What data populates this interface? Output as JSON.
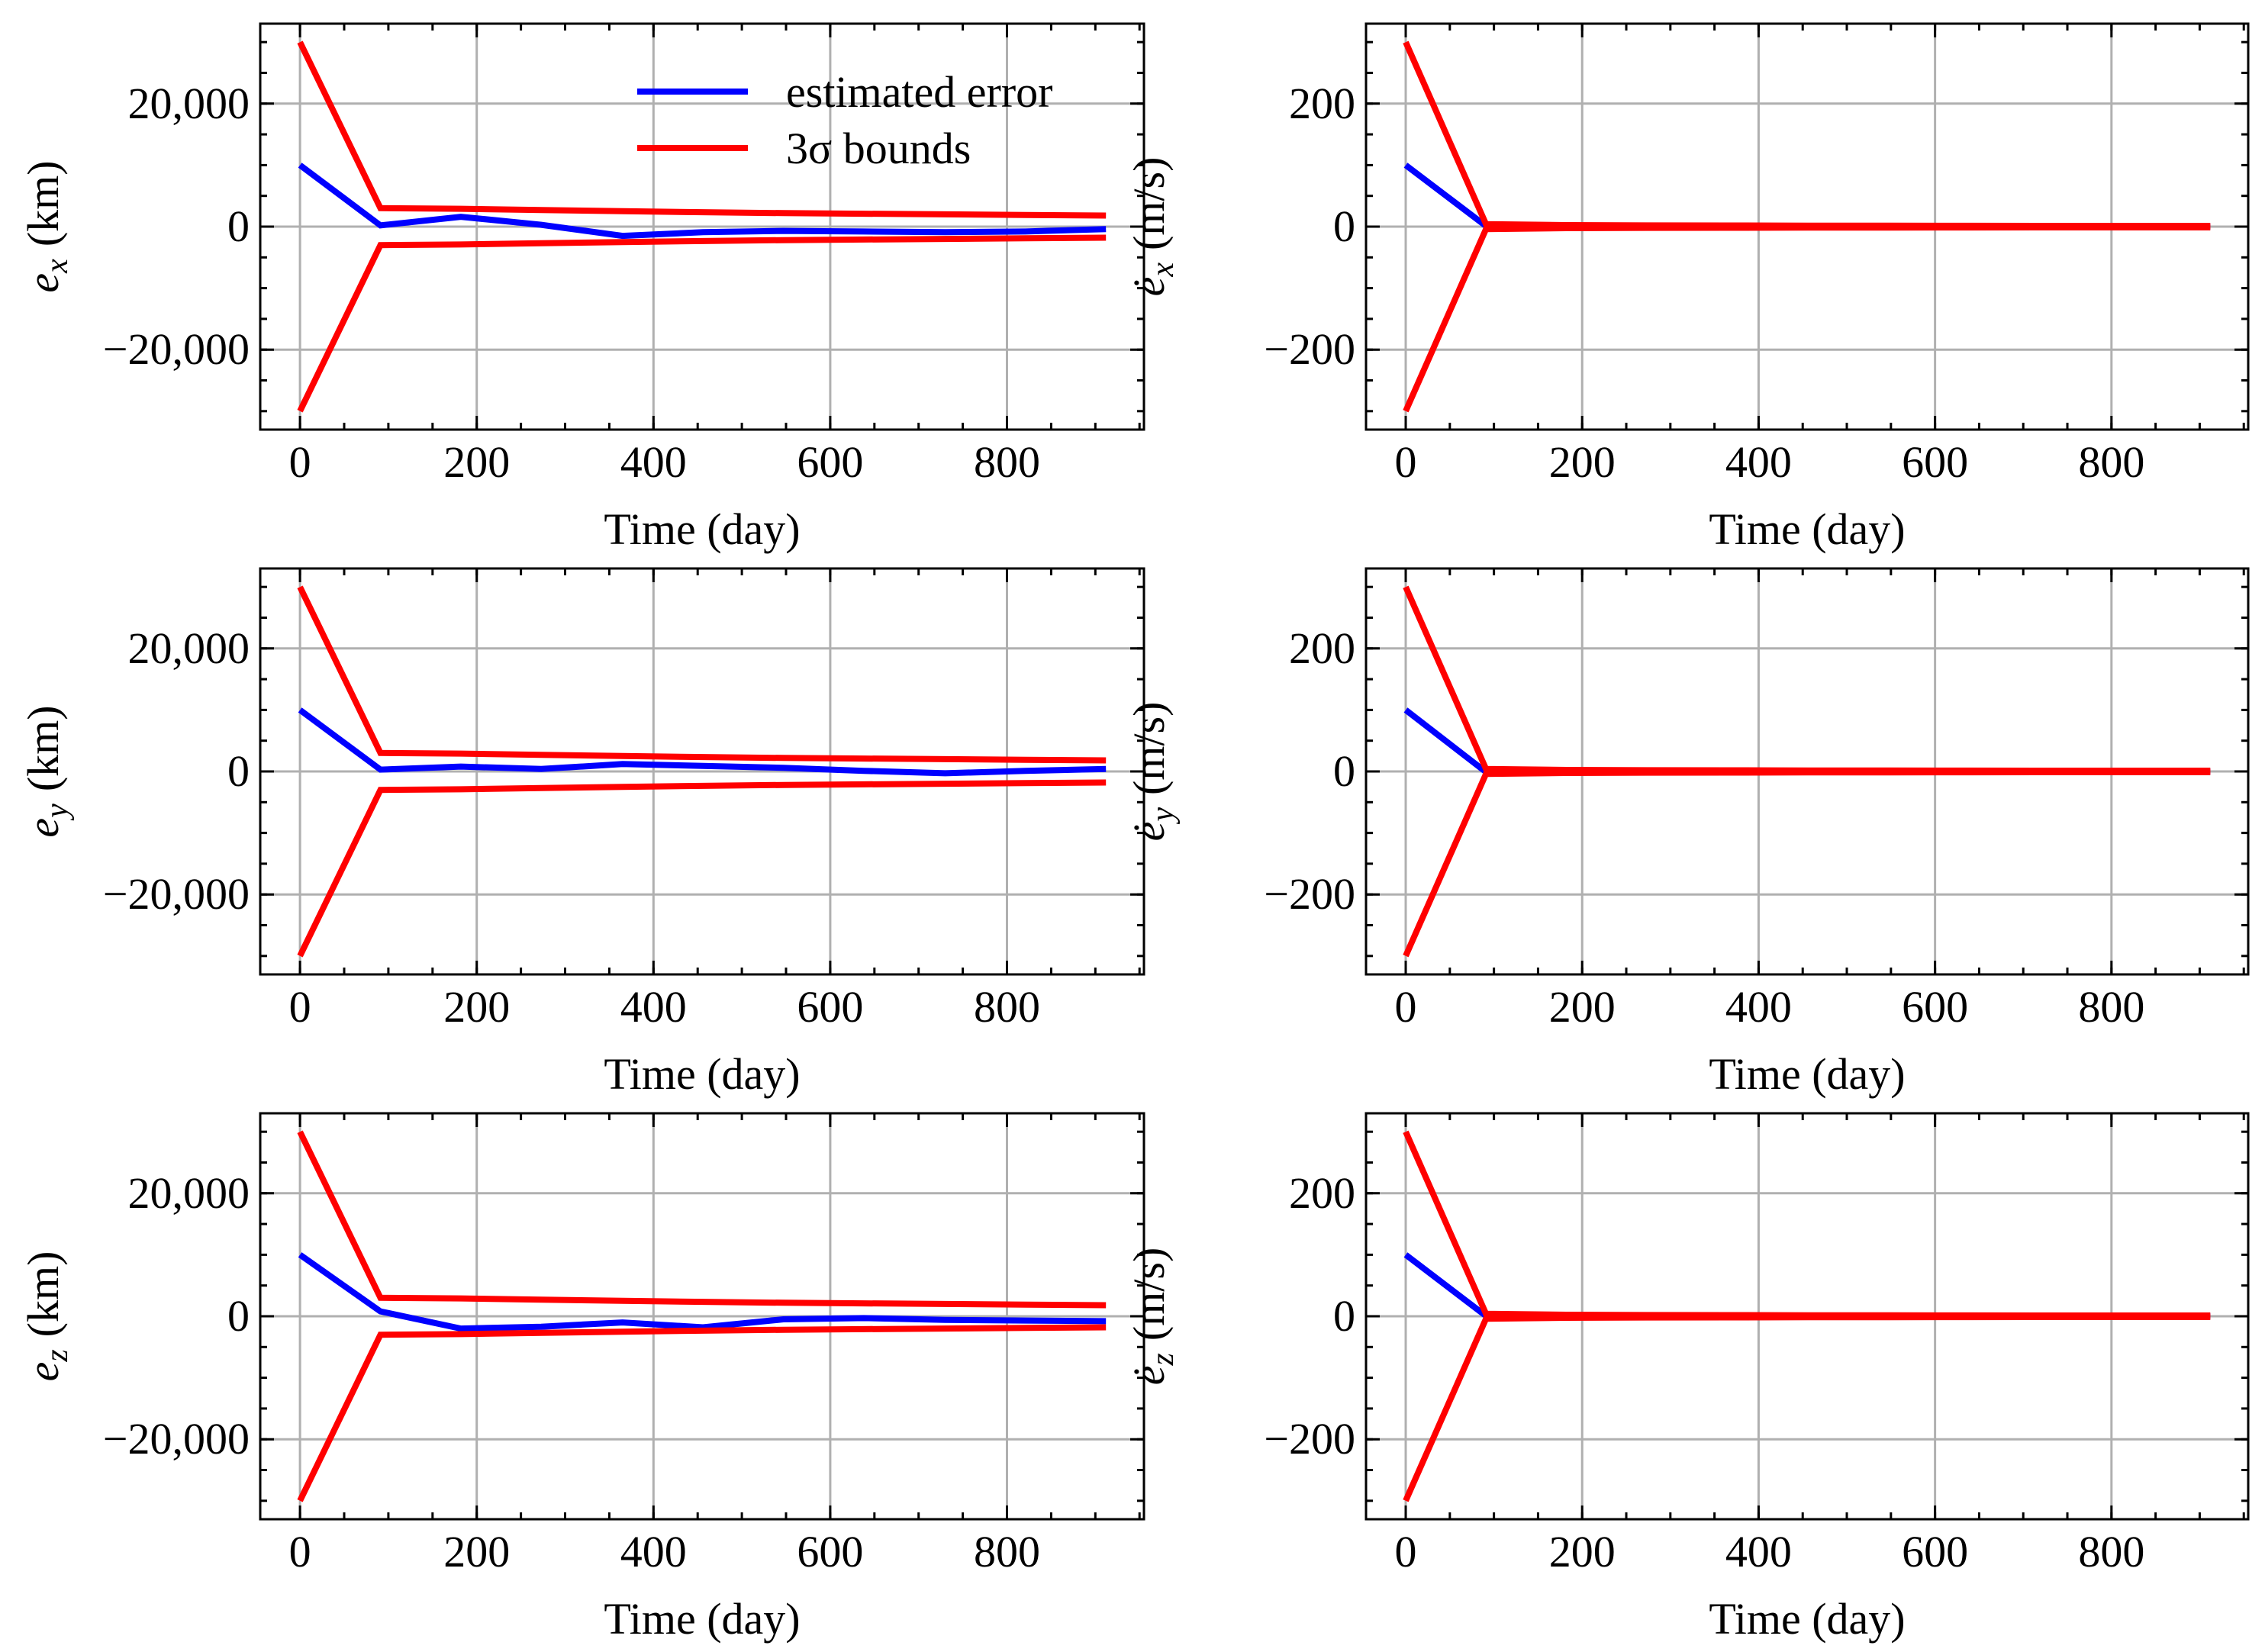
{
  "colors": {
    "estimated": "#0000ff",
    "bounds": "#ff0000",
    "grid": "#b0b0b0"
  },
  "legend": {
    "placement": "top-right of first panel",
    "entries": [
      {
        "label": "estimated error",
        "color": "#0000ff"
      },
      {
        "label": "3σ bounds",
        "color": "#ff0000"
      }
    ]
  },
  "chart_data": [
    {
      "type": "line",
      "ylabel": "e_x (km)",
      "ylabel_var": "e",
      "ylabel_sub": "x",
      "ylabel_unit": "(km)",
      "ylabel_dot": false,
      "xlabel": "Time (day)",
      "xlim": [
        -45,
        955
      ],
      "ylim": [
        -33000,
        33000
      ],
      "xticks": [
        0,
        200,
        400,
        600,
        800
      ],
      "xtick_labels": [
        "0",
        "200",
        "400",
        "600",
        "800"
      ],
      "yticks": [
        -20000,
        0,
        20000
      ],
      "ytick_labels": [
        "−20,000",
        "0",
        "20,000"
      ],
      "x": [
        0,
        91,
        182,
        273,
        365,
        456,
        547,
        638,
        730,
        821,
        912
      ],
      "series": [
        {
          "name": "estimated error",
          "values": [
            10000,
            200,
            1600,
            300,
            -1500,
            -900,
            -700,
            -800,
            -900,
            -800,
            -400
          ]
        },
        {
          "name": "3σ upper",
          "values": [
            30000,
            3000,
            2900,
            2700,
            2500,
            2350,
            2200,
            2100,
            2000,
            1900,
            1800
          ]
        },
        {
          "name": "3σ lower",
          "values": [
            -30000,
            -3000,
            -2900,
            -2700,
            -2500,
            -2350,
            -2200,
            -2100,
            -2000,
            -1900,
            -1800
          ]
        }
      ]
    },
    {
      "type": "line",
      "ylabel": "ė_x (m/s)",
      "ylabel_var": "e",
      "ylabel_sub": "x",
      "ylabel_unit": "(m/s)",
      "ylabel_dot": true,
      "xlabel": "Time (day)",
      "xlim": [
        -45,
        955
      ],
      "ylim": [
        -330,
        330
      ],
      "xticks": [
        0,
        200,
        400,
        600,
        800
      ],
      "xtick_labels": [
        "0",
        "200",
        "400",
        "600",
        "800"
      ],
      "yticks": [
        -200,
        0,
        200
      ],
      "ytick_labels": [
        "−200",
        "0",
        "200"
      ],
      "x": [
        0,
        91,
        182,
        273,
        365,
        456,
        547,
        638,
        730,
        821,
        912
      ],
      "series": [
        {
          "name": "estimated error",
          "values": [
            100,
            1,
            0.5,
            0.3,
            0.2,
            0.2,
            0.1,
            0.1,
            0.1,
            0.1,
            0.1
          ]
        },
        {
          "name": "3σ upper",
          "values": [
            300,
            4,
            2.5,
            2,
            1.8,
            1.6,
            1.5,
            1.4,
            1.3,
            1.2,
            1.2
          ]
        },
        {
          "name": "3σ lower",
          "values": [
            -300,
            -4,
            -2.5,
            -2,
            -1.8,
            -1.6,
            -1.5,
            -1.4,
            -1.3,
            -1.2,
            -1.2
          ]
        }
      ]
    },
    {
      "type": "line",
      "ylabel": "e_y (km)",
      "ylabel_var": "e",
      "ylabel_sub": "y",
      "ylabel_unit": "(km)",
      "ylabel_dot": false,
      "xlabel": "Time (day)",
      "xlim": [
        -45,
        955
      ],
      "ylim": [
        -33000,
        33000
      ],
      "xticks": [
        0,
        200,
        400,
        600,
        800
      ],
      "xtick_labels": [
        "0",
        "200",
        "400",
        "600",
        "800"
      ],
      "yticks": [
        -20000,
        0,
        20000
      ],
      "ytick_labels": [
        "−20,000",
        "0",
        "20,000"
      ],
      "x": [
        0,
        91,
        182,
        273,
        365,
        456,
        547,
        638,
        730,
        821,
        912
      ],
      "series": [
        {
          "name": "estimated error",
          "values": [
            10000,
            300,
            800,
            400,
            1200,
            900,
            600,
            100,
            -300,
            100,
            400
          ]
        },
        {
          "name": "3σ upper",
          "values": [
            30000,
            3000,
            2900,
            2700,
            2500,
            2350,
            2200,
            2100,
            2000,
            1900,
            1800
          ]
        },
        {
          "name": "3σ lower",
          "values": [
            -30000,
            -3000,
            -2900,
            -2700,
            -2500,
            -2350,
            -2200,
            -2100,
            -2000,
            -1900,
            -1800
          ]
        }
      ]
    },
    {
      "type": "line",
      "ylabel": "ė_y (m/s)",
      "ylabel_var": "e",
      "ylabel_sub": "y",
      "ylabel_unit": "(m/s)",
      "ylabel_dot": true,
      "xlabel": "Time (day)",
      "xlim": [
        -45,
        955
      ],
      "ylim": [
        -330,
        330
      ],
      "xticks": [
        0,
        200,
        400,
        600,
        800
      ],
      "xtick_labels": [
        "0",
        "200",
        "400",
        "600",
        "800"
      ],
      "yticks": [
        -200,
        0,
        200
      ],
      "ytick_labels": [
        "−200",
        "0",
        "200"
      ],
      "x": [
        0,
        91,
        182,
        273,
        365,
        456,
        547,
        638,
        730,
        821,
        912
      ],
      "series": [
        {
          "name": "estimated error",
          "values": [
            100,
            -1,
            -0.5,
            -0.3,
            -0.2,
            -0.2,
            -0.1,
            -0.1,
            -0.1,
            -0.1,
            -0.1
          ]
        },
        {
          "name": "3σ upper",
          "values": [
            300,
            4,
            2.5,
            2,
            1.8,
            1.6,
            1.5,
            1.4,
            1.3,
            1.2,
            1.2
          ]
        },
        {
          "name": "3σ lower",
          "values": [
            -300,
            -4,
            -2.5,
            -2,
            -1.8,
            -1.6,
            -1.5,
            -1.4,
            -1.3,
            -1.2,
            -1.2
          ]
        }
      ]
    },
    {
      "type": "line",
      "ylabel": "e_z (km)",
      "ylabel_var": "e",
      "ylabel_sub": "z",
      "ylabel_unit": "(km)",
      "ylabel_dot": false,
      "xlabel": "Time (day)",
      "xlim": [
        -45,
        955
      ],
      "ylim": [
        -33000,
        33000
      ],
      "xticks": [
        0,
        200,
        400,
        600,
        800
      ],
      "xtick_labels": [
        "0",
        "200",
        "400",
        "600",
        "800"
      ],
      "yticks": [
        -20000,
        0,
        20000
      ],
      "ytick_labels": [
        "−20,000",
        "0",
        "20,000"
      ],
      "x": [
        0,
        91,
        182,
        273,
        365,
        456,
        547,
        638,
        730,
        821,
        912
      ],
      "series": [
        {
          "name": "estimated error",
          "values": [
            10000,
            800,
            -2000,
            -1700,
            -1000,
            -1800,
            -500,
            -300,
            -600,
            -700,
            -800
          ]
        },
        {
          "name": "3σ upper",
          "values": [
            30000,
            3000,
            2900,
            2700,
            2500,
            2350,
            2200,
            2100,
            2000,
            1900,
            1800
          ]
        },
        {
          "name": "3σ lower",
          "values": [
            -30000,
            -3000,
            -2900,
            -2700,
            -2500,
            -2350,
            -2200,
            -2100,
            -2000,
            -1900,
            -1800
          ]
        }
      ]
    },
    {
      "type": "line",
      "ylabel": "ė_z (m/s)",
      "ylabel_var": "e",
      "ylabel_sub": "z",
      "ylabel_unit": "(m/s)",
      "ylabel_dot": true,
      "xlabel": "Time (day)",
      "xlim": [
        -45,
        955
      ],
      "ylim": [
        -330,
        330
      ],
      "xticks": [
        0,
        200,
        400,
        600,
        800
      ],
      "xtick_labels": [
        "0",
        "200",
        "400",
        "600",
        "800"
      ],
      "yticks": [
        -200,
        0,
        200
      ],
      "ytick_labels": [
        "−200",
        "0",
        "200"
      ],
      "x": [
        0,
        91,
        182,
        273,
        365,
        456,
        547,
        638,
        730,
        821,
        912
      ],
      "series": [
        {
          "name": "estimated error",
          "values": [
            100,
            0.5,
            0.3,
            0.2,
            0.1,
            0.1,
            0.1,
            0.1,
            0.1,
            0.1,
            0.1
          ]
        },
        {
          "name": "3σ upper",
          "values": [
            300,
            4,
            2.5,
            2,
            1.8,
            1.6,
            1.5,
            1.4,
            1.3,
            1.2,
            1.2
          ]
        },
        {
          "name": "3σ lower",
          "values": [
            -300,
            -4,
            -2.5,
            -2,
            -1.8,
            -1.6,
            -1.5,
            -1.4,
            -1.3,
            -1.2,
            -1.2
          ]
        }
      ]
    }
  ]
}
